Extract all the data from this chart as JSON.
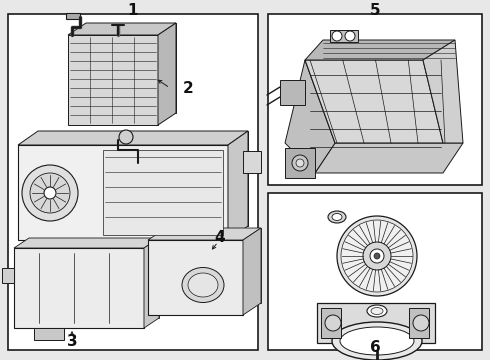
{
  "background_color": "#ffffff",
  "line_color": "#1a1a1a",
  "label_color": "#111111",
  "fig_width": 4.9,
  "fig_height": 3.6,
  "dpi": 100,
  "outer_bg": "#e8e8e8",
  "inner_bg": "#ffffff"
}
